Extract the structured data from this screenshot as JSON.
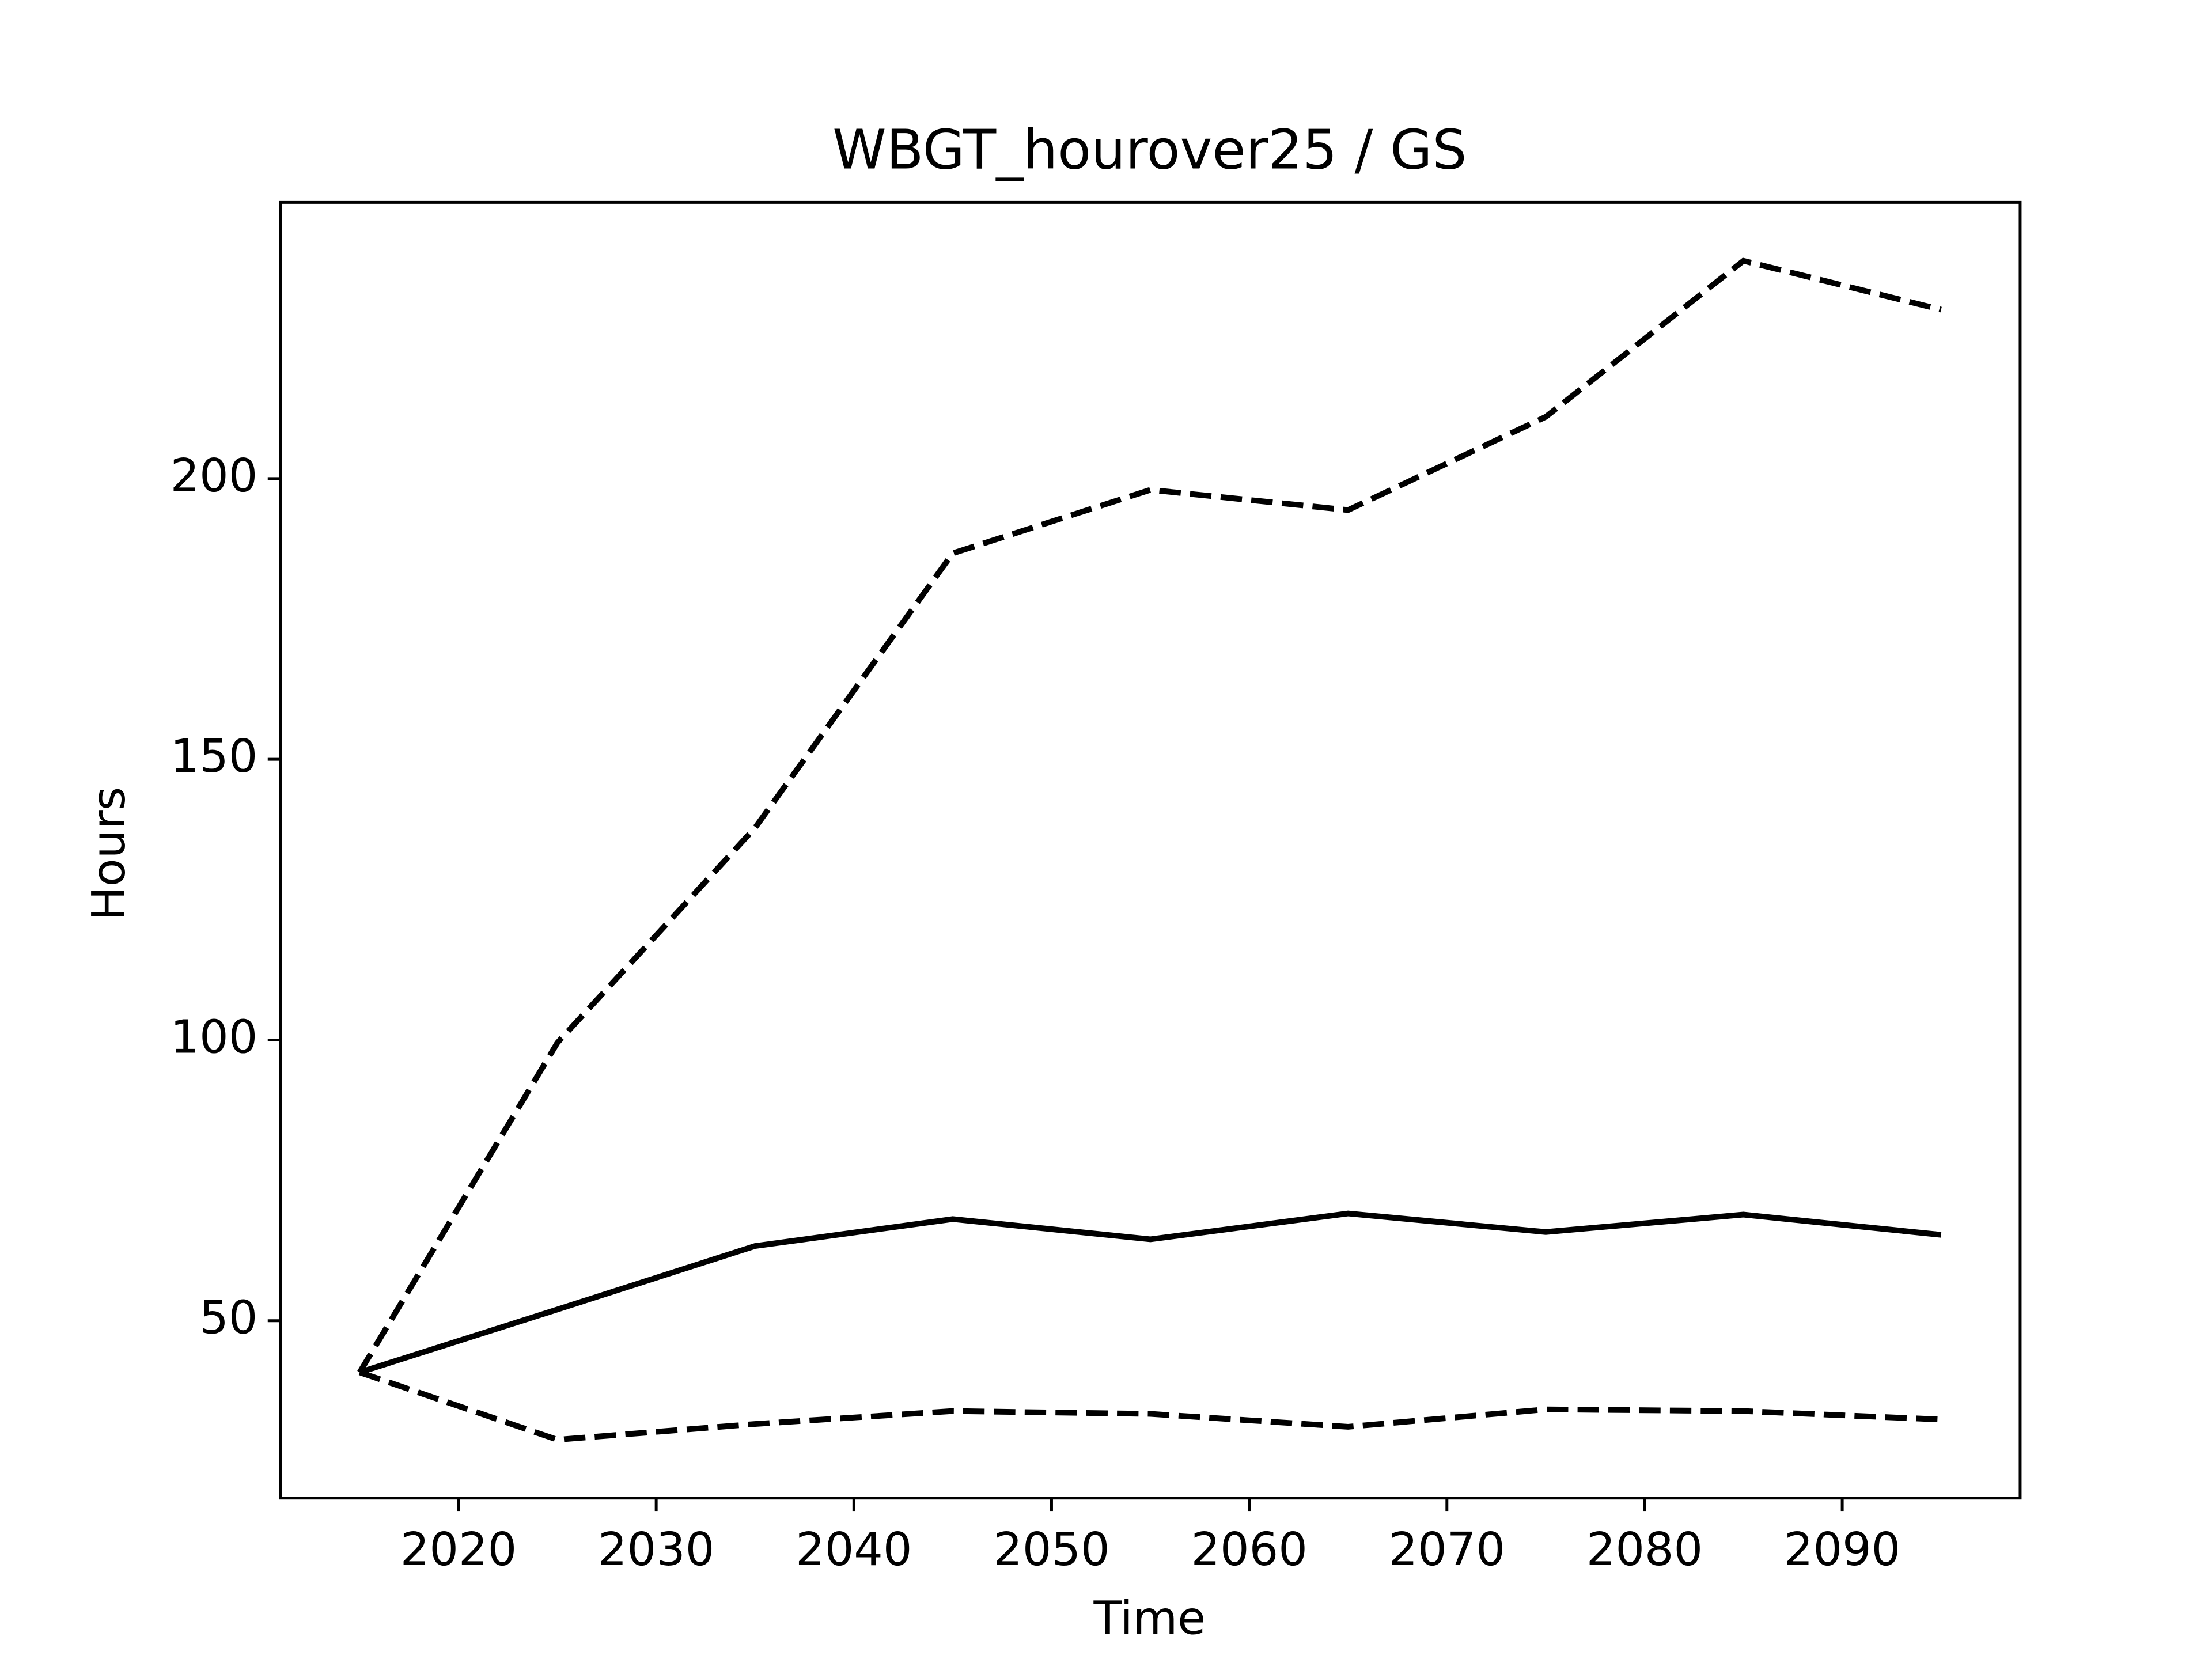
{
  "chart_data": {
    "type": "line",
    "title": "WBGT_hourover25 / GS",
    "xlabel": "Time",
    "ylabel": "Hours",
    "x": [
      2015,
      2025,
      2035,
      2045,
      2055,
      2065,
      2075,
      2085,
      2095
    ],
    "series": [
      {
        "color": "#000000",
        "dashed": false,
        "values": [
          40.8,
          52.0,
          63.3,
          68.1,
          64.5,
          69.1,
          65.8,
          68.9,
          65.3
        ]
      },
      {
        "color": "#000000",
        "dashed": true,
        "values": [
          40.8,
          99.5,
          137.8,
          186.7,
          198.0,
          194.4,
          211.0,
          238.8,
          230.1
        ]
      },
      {
        "color": "#000000",
        "dashed": true,
        "values": [
          40.8,
          28.8,
          31.6,
          33.9,
          33.4,
          31.1,
          34.2,
          33.9,
          32.4
        ]
      }
    ],
    "xlim": [
      2011,
      2099
    ],
    "xticks": [
      2020,
      2030,
      2040,
      2050,
      2060,
      2070,
      2080,
      2090
    ],
    "ylim": [
      18.4,
      249.2
    ],
    "yticks": [
      50,
      100,
      150,
      200
    ],
    "grid": false
  }
}
